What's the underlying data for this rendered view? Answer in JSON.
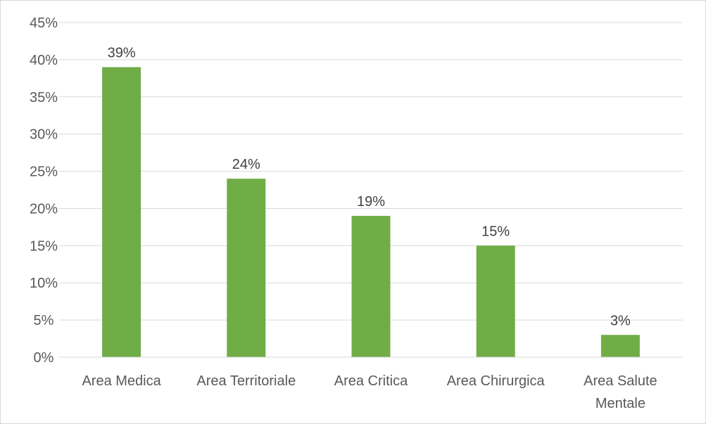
{
  "chart_data": {
    "type": "bar",
    "title": "",
    "xlabel": "",
    "ylabel": "",
    "categories": [
      [
        "Area Medica"
      ],
      [
        "Area Territoriale"
      ],
      [
        "Area Critica"
      ],
      [
        "Area Chirurgica"
      ],
      [
        "Area Salute",
        "Mentale"
      ]
    ],
    "values": [
      39,
      24,
      19,
      15,
      3
    ],
    "data_labels": [
      "39%",
      "24%",
      "19%",
      "15%",
      "3%"
    ],
    "ylim": [
      0,
      45
    ],
    "y_ticks": [
      0,
      5,
      10,
      15,
      20,
      25,
      30,
      35,
      40,
      45
    ],
    "y_tick_labels": [
      "0%",
      "5%",
      "10%",
      "15%",
      "20%",
      "25%",
      "30%",
      "35%",
      "40%",
      "45%"
    ],
    "grid": true,
    "legend": "none",
    "colors": {
      "bar": "#70ad47",
      "grid": "#d9d9d9",
      "text": "#595959"
    }
  }
}
